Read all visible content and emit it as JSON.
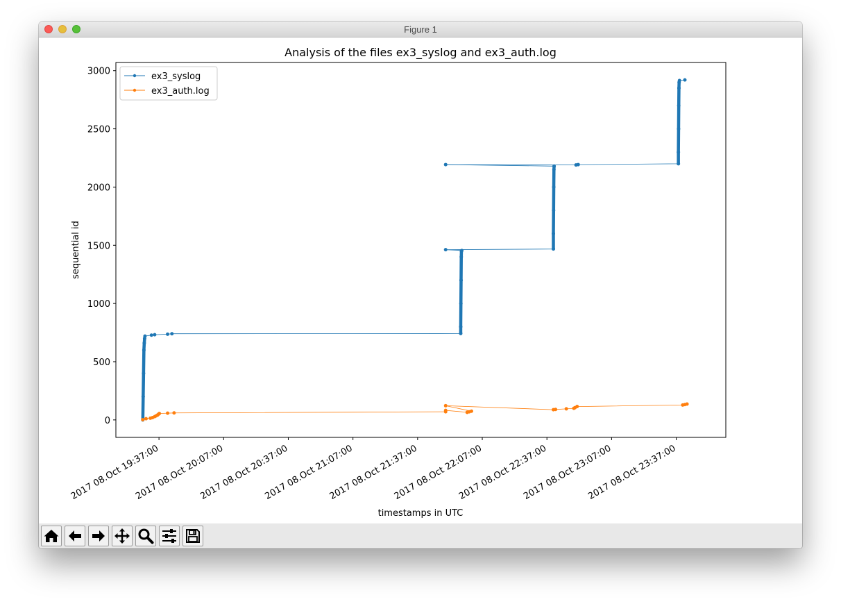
{
  "window": {
    "title": "Figure 1"
  },
  "toolbar": {
    "buttons": [
      {
        "name": "home-icon"
      },
      {
        "name": "back-arrow-icon"
      },
      {
        "name": "forward-arrow-icon"
      },
      {
        "name": "pan-icon"
      },
      {
        "name": "zoom-icon"
      },
      {
        "name": "configure-subplots-icon"
      },
      {
        "name": "save-icon"
      }
    ]
  },
  "colors": {
    "syslog": "#1f77b4",
    "auth": "#ff7f0e"
  },
  "chart_data": {
    "type": "line",
    "title": "Analysis of the files ex3_syslog and ex3_auth.log",
    "xlabel": "timestamps in UTC",
    "ylabel": "sequential id",
    "x_unit": "time (UTC)",
    "xlim": [
      "2017-10-08 19:17",
      "2017-10-09 00:00"
    ],
    "ylim": [
      -150,
      3070
    ],
    "xticks": [
      "2017 08.Oct 19:37:00",
      "2017 08.Oct 20:07:00",
      "2017 08.Oct 20:37:00",
      "2017 08.Oct 21:07:00",
      "2017 08.Oct 21:37:00",
      "2017 08.Oct 22:07:00",
      "2017 08.Oct 22:37:00",
      "2017 08.Oct 23:07:00",
      "2017 08.Oct 23:37:00"
    ],
    "yticks": [
      "0",
      "500",
      "1000",
      "1500",
      "2000",
      "2500",
      "3000"
    ],
    "legend_position": "upper-left",
    "grid": false,
    "series": [
      {
        "name": "ex3_syslog",
        "color": "#1f77b4",
        "points": [
          [
            "19:29:30",
            0
          ],
          [
            "19:29:40",
            200
          ],
          [
            "19:29:50",
            400
          ],
          [
            "19:30:00",
            600
          ],
          [
            "19:30:10",
            660
          ],
          [
            "19:30:20",
            700
          ],
          [
            "19:30:30",
            720
          ],
          [
            "19:33:30",
            728
          ],
          [
            "19:35:00",
            732
          ],
          [
            "19:41:00",
            736
          ],
          [
            "19:43:00",
            740
          ],
          [
            "21:57:00",
            742
          ],
          [
            "21:57:00",
            800
          ],
          [
            "21:57:05",
            1000
          ],
          [
            "21:57:10",
            1200
          ],
          [
            "21:57:15",
            1400
          ],
          [
            "21:57:20",
            1450
          ],
          [
            "21:57:30",
            1455
          ],
          [
            "21:50:00",
            1462
          ],
          [
            "22:40:00",
            1468
          ],
          [
            "22:40:00",
            1600
          ],
          [
            "22:40:05",
            1800
          ],
          [
            "22:40:10",
            2000
          ],
          [
            "22:40:15",
            2150
          ],
          [
            "22:40:20",
            2180
          ],
          [
            "21:50:00",
            2193
          ],
          [
            "22:50:30",
            2190
          ],
          [
            "22:51:30",
            2193
          ],
          [
            "23:38:00",
            2200
          ],
          [
            "23:38:00",
            2300
          ],
          [
            "23:38:05",
            2500
          ],
          [
            "23:38:10",
            2700
          ],
          [
            "23:38:15",
            2850
          ],
          [
            "23:38:20",
            2900
          ],
          [
            "23:38:30",
            2915
          ],
          [
            "23:41:00",
            2920
          ]
        ]
      },
      {
        "name": "ex3_auth.log",
        "color": "#ff7f0e",
        "points": [
          [
            "19:29:30",
            2
          ],
          [
            "19:31:00",
            10
          ],
          [
            "19:33:00",
            15
          ],
          [
            "19:34:00",
            20
          ],
          [
            "19:35:00",
            28
          ],
          [
            "19:35:40",
            35
          ],
          [
            "19:36:20",
            42
          ],
          [
            "19:36:50",
            50
          ],
          [
            "19:37:10",
            55
          ],
          [
            "19:41:00",
            58
          ],
          [
            "19:44:00",
            60
          ],
          [
            "21:50:00",
            70
          ],
          [
            "21:50:00",
            82
          ],
          [
            "22:00:00",
            65
          ],
          [
            "22:01:00",
            70
          ],
          [
            "22:02:00",
            75
          ],
          [
            "21:50:00",
            122
          ],
          [
            "22:40:00",
            88
          ],
          [
            "22:41:00",
            90
          ],
          [
            "22:46:00",
            95
          ],
          [
            "22:49:30",
            100
          ],
          [
            "22:50:00",
            105
          ],
          [
            "22:51:00",
            115
          ],
          [
            "23:40:00",
            128
          ],
          [
            "23:41:00",
            132
          ],
          [
            "23:42:00",
            136
          ]
        ]
      }
    ]
  }
}
